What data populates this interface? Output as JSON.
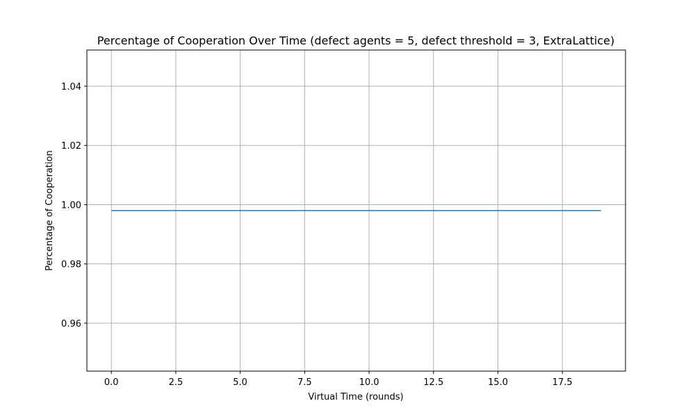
{
  "chart_data": {
    "type": "line",
    "title": "Percentage of Cooperation Over Time (defect agents = 5, defect threshold = 3, ExtraLattice)",
    "xlabel": "Virtual Time (rounds)",
    "ylabel": "Percentage of Cooperation",
    "xlim": [
      -0.95,
      19.95
    ],
    "ylim": [
      0.9438,
      1.0522
    ],
    "x_ticks": [
      0.0,
      2.5,
      5.0,
      7.5,
      10.0,
      12.5,
      15.0,
      17.5
    ],
    "x_tick_labels": [
      "0.0",
      "2.5",
      "5.0",
      "7.5",
      "10.0",
      "12.5",
      "15.0",
      "17.5"
    ],
    "y_ticks": [
      0.96,
      0.98,
      1.0,
      1.02,
      1.04
    ],
    "y_tick_labels": [
      "0.96",
      "0.98",
      "1.00",
      "1.02",
      "1.04"
    ],
    "grid": true,
    "series": [
      {
        "color": "#1f77b4",
        "x": [
          0,
          1,
          2,
          3,
          4,
          5,
          6,
          7,
          8,
          9,
          10,
          11,
          12,
          13,
          14,
          15,
          16,
          17,
          18,
          19
        ],
        "values": [
          0.998,
          0.998,
          0.998,
          0.998,
          0.998,
          0.998,
          0.998,
          0.998,
          0.998,
          0.998,
          0.998,
          0.998,
          0.998,
          0.998,
          0.998,
          0.998,
          0.998,
          0.998,
          0.998,
          0.998
        ]
      }
    ]
  }
}
